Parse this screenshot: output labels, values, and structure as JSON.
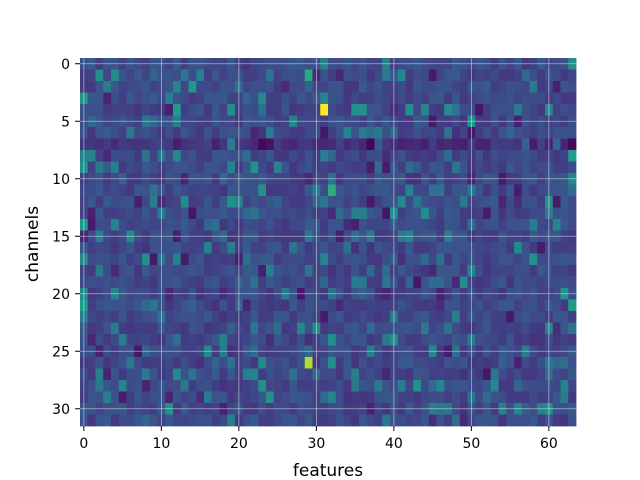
{
  "chart_data": {
    "type": "heatmap",
    "title": "",
    "xlabel": "features",
    "ylabel": "channels",
    "n_cols": 64,
    "n_rows": 32,
    "x_ticks": [
      "0",
      "10",
      "20",
      "30",
      "40",
      "50",
      "60"
    ],
    "y_ticks": [
      "0",
      "5",
      "10",
      "15",
      "20",
      "25",
      "30"
    ],
    "grid": true,
    "colormap": "viridis",
    "colormap_stops": [
      "#440154",
      "#482878",
      "#3e4a89",
      "#31688e",
      "#26828e",
      "#1f9e89",
      "#35b779",
      "#6ece58",
      "#b5de2b",
      "#fde725"
    ],
    "background_level": 0.22,
    "highlights": [
      {
        "row": 4,
        "col": 31,
        "level": 1.0
      },
      {
        "row": 26,
        "col": 29,
        "level": 0.88
      },
      {
        "row": 11,
        "col": 32,
        "level": 0.62
      },
      {
        "row": 1,
        "col": 29,
        "level": 0.6
      },
      {
        "row": 7,
        "col": 23,
        "level": 0.02
      },
      {
        "row": 7,
        "col": 24,
        "level": 0.05
      },
      {
        "row": 7,
        "col": 63,
        "level": 0.02
      },
      {
        "row": 21,
        "col": 63,
        "level": 0.55
      },
      {
        "row": 8,
        "col": 63,
        "level": 0.55
      },
      {
        "row": 4,
        "col": 12,
        "level": 0.55
      },
      {
        "row": 4,
        "col": 35,
        "level": 0.5
      },
      {
        "row": 14,
        "col": 0,
        "level": 0.55
      },
      {
        "row": 21,
        "col": 0,
        "level": 0.55
      },
      {
        "row": 11,
        "col": 23,
        "level": 0.5
      },
      {
        "row": 28,
        "col": 23,
        "level": 0.5
      },
      {
        "row": 29,
        "col": 24,
        "level": 0.5
      },
      {
        "row": 1,
        "col": 2,
        "level": 0.5
      },
      {
        "row": 11,
        "col": 42,
        "level": 0.45
      },
      {
        "row": 30,
        "col": 60,
        "level": 0.5
      },
      {
        "row": 0,
        "col": 63,
        "level": 0.5
      }
    ]
  }
}
